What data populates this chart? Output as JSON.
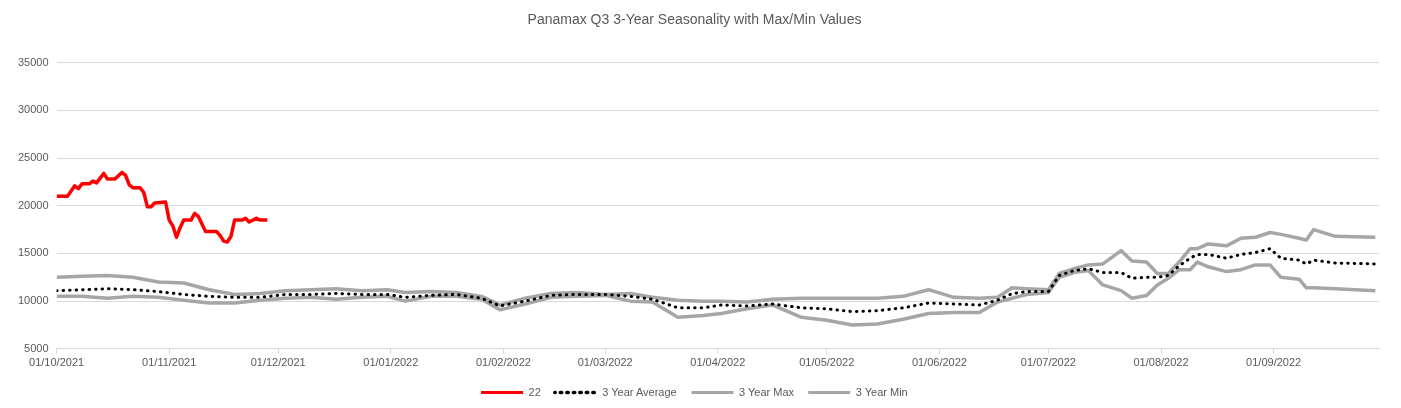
{
  "chart_data": {
    "type": "line",
    "title": "Panamax Q3 3-Year Seasonality with Max/Min Values",
    "xlim": [
      "2021-10-01",
      "2022-09-30"
    ],
    "xticks": [
      {
        "value": "2021-10-01",
        "label": "01/10/2021"
      },
      {
        "value": "2021-11-01",
        "label": "01/11/2021"
      },
      {
        "value": "2021-12-01",
        "label": "01/12/2021"
      },
      {
        "value": "2022-01-01",
        "label": "01/01/2022"
      },
      {
        "value": "2022-02-01",
        "label": "01/02/2022"
      },
      {
        "value": "2022-03-01",
        "label": "01/03/2022"
      },
      {
        "value": "2022-04-01",
        "label": "01/04/2022"
      },
      {
        "value": "2022-05-01",
        "label": "01/05/2022"
      },
      {
        "value": "2022-06-01",
        "label": "01/06/2022"
      },
      {
        "value": "2022-07-01",
        "label": "01/07/2022"
      },
      {
        "value": "2022-08-01",
        "label": "01/08/2022"
      },
      {
        "value": "2022-09-01",
        "label": "01/09/2022"
      }
    ],
    "ylim": [
      5000,
      35000
    ],
    "yticks": [
      5000,
      10000,
      15000,
      20000,
      25000,
      30000,
      35000
    ],
    "grid": "y",
    "legend": "bottom",
    "marker": "none",
    "x": [
      "2021-10-01",
      "2021-10-08",
      "2021-10-15",
      "2021-10-22",
      "2021-10-29",
      "2021-11-05",
      "2021-11-12",
      "2021-11-19",
      "2021-11-26",
      "2021-12-03",
      "2021-12-10",
      "2021-12-17",
      "2021-12-24",
      "2021-12-31",
      "2022-01-05",
      "2022-01-12",
      "2022-01-19",
      "2022-01-26",
      "2022-01-31",
      "2022-02-07",
      "2022-02-14",
      "2022-02-21",
      "2022-03-01",
      "2022-03-08",
      "2022-03-14",
      "2022-03-21",
      "2022-03-28",
      "2022-04-02",
      "2022-04-09",
      "2022-04-16",
      "2022-04-24",
      "2022-05-01",
      "2022-05-08",
      "2022-05-15",
      "2022-05-22",
      "2022-05-29",
      "2022-06-05",
      "2022-06-12",
      "2022-06-17",
      "2022-06-21",
      "2022-06-25",
      "2022-07-01",
      "2022-07-04",
      "2022-07-08",
      "2022-07-12",
      "2022-07-16",
      "2022-07-21",
      "2022-07-24",
      "2022-07-28",
      "2022-07-31",
      "2022-08-03",
      "2022-08-06",
      "2022-08-09",
      "2022-08-11",
      "2022-08-14",
      "2022-08-19",
      "2022-08-23",
      "2022-08-27",
      "2022-08-31",
      "2022-09-03",
      "2022-09-08",
      "2022-09-10",
      "2022-09-12",
      "2022-09-18",
      "2022-09-29"
    ],
    "series": [
      {
        "name": "22",
        "color": "#ff0000",
        "line_style": "solid",
        "x": [
          "2021-10-01",
          "2021-10-04",
          "2021-10-06",
          "2021-10-07",
          "2021-10-08",
          "2021-10-10",
          "2021-10-11",
          "2021-10-12",
          "2021-10-14",
          "2021-10-15",
          "2021-10-17",
          "2021-10-19",
          "2021-10-20",
          "2021-10-21",
          "2021-10-22",
          "2021-10-24",
          "2021-10-25",
          "2021-10-26",
          "2021-10-27",
          "2021-10-28",
          "2021-10-31",
          "2021-11-01",
          "2021-11-02",
          "2021-11-03",
          "2021-11-04",
          "2021-11-05",
          "2021-11-07",
          "2021-11-08",
          "2021-11-09",
          "2021-11-11",
          "2021-11-14",
          "2021-11-15",
          "2021-11-16",
          "2021-11-17",
          "2021-11-18",
          "2021-11-19",
          "2021-11-21",
          "2021-11-22",
          "2021-11-23",
          "2021-11-25",
          "2021-11-26",
          "2021-11-28"
        ],
        "values": [
          21000,
          21000,
          22100,
          21800,
          22300,
          22300,
          22600,
          22400,
          23400,
          22800,
          22800,
          23500,
          23200,
          22200,
          21900,
          21900,
          21400,
          19900,
          19900,
          20300,
          20400,
          18500,
          17900,
          16700,
          17700,
          18500,
          18500,
          19200,
          18900,
          17300,
          17300,
          16900,
          16300,
          16200,
          16800,
          18500,
          18500,
          18700,
          18300,
          18700,
          18500,
          18500
        ]
      },
      {
        "name": "3 Year Average",
        "color": "#000000",
        "line_style": "dotted",
        "values": [
          11100,
          11200,
          11300,
          11200,
          11000,
          10700,
          10500,
          10400,
          10400,
          10700,
          10700,
          10800,
          10700,
          10700,
          10400,
          10600,
          10700,
          10300,
          9500,
          10000,
          10600,
          10700,
          10700,
          10500,
          10200,
          9300,
          9300,
          9600,
          9500,
          9700,
          9300,
          9200,
          8900,
          9000,
          9300,
          9800,
          9700,
          9600,
          10100,
          10800,
          11000,
          11000,
          12700,
          13200,
          13400,
          13000,
          13000,
          12400,
          12500,
          12500,
          12700,
          13700,
          14500,
          14900,
          14900,
          14500,
          14900,
          15100,
          15500,
          14500,
          14300,
          13900,
          14300,
          14000,
          13900
        ]
      },
      {
        "name": "3 Year Max",
        "color": "#a6a6a6",
        "line_style": "solid",
        "values": [
          12500,
          12600,
          12700,
          12500,
          12000,
          11900,
          11200,
          10700,
          10800,
          11100,
          11200,
          11300,
          11100,
          11200,
          10900,
          11000,
          10900,
          10500,
          9600,
          10300,
          10800,
          10900,
          10700,
          10800,
          10400,
          10100,
          10000,
          10000,
          9900,
          10200,
          10300,
          10300,
          10300,
          10300,
          10500,
          11200,
          10400,
          10300,
          10400,
          11400,
          11300,
          11200,
          12900,
          13400,
          13800,
          13900,
          15300,
          14200,
          14100,
          12900,
          12900,
          14100,
          15500,
          15500,
          16000,
          15800,
          16600,
          16700,
          17200,
          17000,
          16600,
          16400,
          17500,
          16800,
          16700
        ]
      },
      {
        "name": "3 Year Min",
        "color": "#a6a6a6",
        "line_style": "solid",
        "values": [
          10500,
          10500,
          10300,
          10500,
          10400,
          10100,
          9800,
          9800,
          10100,
          10300,
          10400,
          10200,
          10400,
          10500,
          10000,
          10500,
          10500,
          10200,
          9100,
          9700,
          10400,
          10500,
          10600,
          10000,
          9900,
          8300,
          8500,
          8700,
          9200,
          9600,
          8300,
          8000,
          7500,
          7600,
          8100,
          8700,
          8800,
          8800,
          9900,
          10300,
          10700,
          10900,
          12500,
          13000,
          13200,
          11700,
          11100,
          10300,
          10600,
          11700,
          12400,
          13300,
          13300,
          14100,
          13600,
          13100,
          13300,
          13800,
          13800,
          12500,
          12300,
          11400,
          11400,
          11300,
          11100
        ]
      }
    ]
  }
}
